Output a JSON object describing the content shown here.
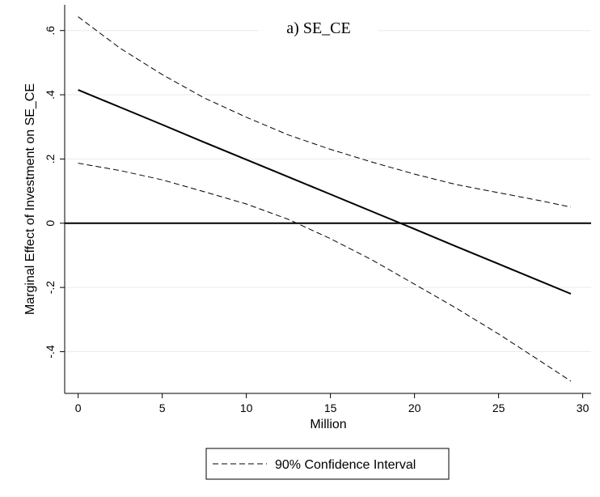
{
  "chart_data": {
    "type": "line",
    "title": "a) SE_CE",
    "xlabel": "Million",
    "ylabel": "Marginal Effect of Investment on SE_CE",
    "xlim": [
      -0.8,
      30.5
    ],
    "ylim": [
      -0.53,
      0.68
    ],
    "xticks": [
      0,
      5,
      10,
      15,
      20,
      25,
      30
    ],
    "xtick_labels": [
      "0",
      "5",
      "10",
      "15",
      "20",
      "25",
      "30"
    ],
    "yticks": [
      0.6,
      0.4,
      0.2,
      0,
      -0.2,
      -0.4
    ],
    "ytick_labels": [
      ".6",
      ".4",
      ".2",
      "0",
      "-.2",
      "-.4"
    ],
    "grid": true,
    "reference_line": 0,
    "x": [
      0,
      2.5,
      5,
      7.5,
      10,
      12.5,
      15,
      17.5,
      20,
      22.5,
      25,
      27.5,
      29.3
    ],
    "series": [
      {
        "values": [
          0.415,
          0.361,
          0.307,
          0.252,
          0.198,
          0.144,
          0.09,
          0.036,
          -0.018,
          -0.073,
          -0.127,
          -0.181,
          -0.22
        ],
        "style": "solid"
      },
      {
        "values": [
          0.643,
          0.545,
          0.463,
          0.39,
          0.33,
          0.275,
          0.23,
          0.19,
          0.153,
          0.12,
          0.095,
          0.07,
          0.05
        ],
        "style": "dashed"
      },
      {
        "values": [
          0.187,
          0.164,
          0.135,
          0.098,
          0.06,
          0.012,
          -0.048,
          -0.115,
          -0.19,
          -0.265,
          -0.345,
          -0.43,
          -0.492
        ],
        "style": "dashed"
      }
    ],
    "legend": {
      "entries": [
        "90% Confidence Interval"
      ],
      "placement": "bottom-center"
    },
    "colors": {
      "line": "#000000",
      "grid": "#e6ebef",
      "axis": "#000000",
      "background": "#ffffff"
    }
  }
}
